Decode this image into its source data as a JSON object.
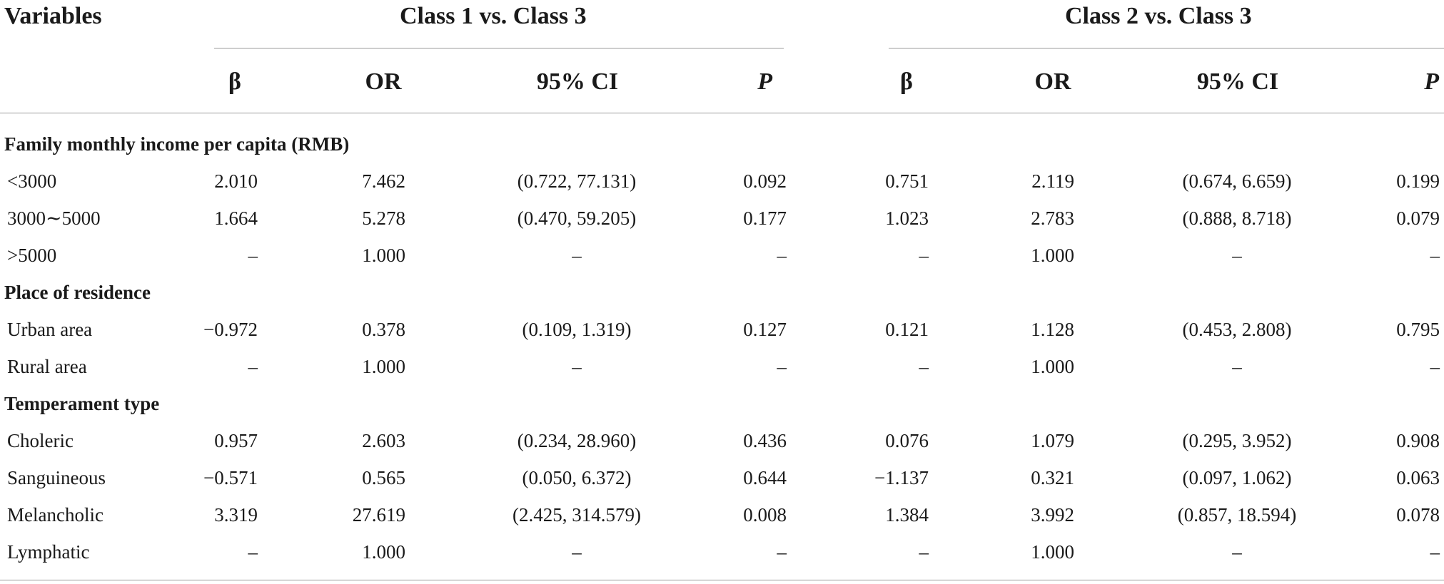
{
  "table": {
    "corner_label": "Variables",
    "groups": [
      {
        "label": "Class 1 vs. Class 3"
      },
      {
        "label": "Class 2 vs. Class 3"
      }
    ],
    "subheaders": [
      "β",
      "OR",
      "95% CI",
      "P",
      "β",
      "OR",
      "95% CI",
      "P"
    ],
    "sections": [
      {
        "title": "Family monthly income per capita (RMB)",
        "rows": [
          {
            "label": "<3000",
            "values": [
              "2.010",
              "7.462",
              "(0.722, 77.131)",
              "0.092",
              "0.751",
              "2.119",
              "(0.674, 6.659)",
              "0.199"
            ]
          },
          {
            "label": "3000∼5000",
            "values": [
              "1.664",
              "5.278",
              "(0.470, 59.205)",
              "0.177",
              "1.023",
              "2.783",
              "(0.888, 8.718)",
              "0.079"
            ]
          },
          {
            "label": ">5000",
            "values": [
              "–",
              "1.000",
              "–",
              "–",
              "–",
              "1.000",
              "–",
              "–"
            ]
          }
        ]
      },
      {
        "title": "Place of residence",
        "rows": [
          {
            "label": "Urban area",
            "values": [
              "−0.972",
              "0.378",
              "(0.109, 1.319)",
              "0.127",
              "0.121",
              "1.128",
              "(0.453, 2.808)",
              "0.795"
            ]
          },
          {
            "label": "Rural area",
            "values": [
              "–",
              "1.000",
              "–",
              "–",
              "–",
              "1.000",
              "–",
              "–"
            ]
          }
        ]
      },
      {
        "title": "Temperament type",
        "rows": [
          {
            "label": "Choleric",
            "values": [
              "0.957",
              "2.603",
              "(0.234, 28.960)",
              "0.436",
              "0.076",
              "1.079",
              "(0.295, 3.952)",
              "0.908"
            ]
          },
          {
            "label": "Sanguineous",
            "values": [
              "−0.571",
              "0.565",
              "(0.050, 6.372)",
              "0.644",
              "−1.137",
              "0.321",
              "(0.097, 1.062)",
              "0.063"
            ]
          },
          {
            "label": "Melancholic",
            "values": [
              "3.319",
              "27.619",
              "(2.425, 314.579)",
              "0.008",
              "1.384",
              "3.992",
              "(0.857, 18.594)",
              "0.078"
            ]
          },
          {
            "label": "Lymphatic",
            "values": [
              "–",
              "1.000",
              "–",
              "–",
              "–",
              "1.000",
              "–",
              "–"
            ]
          }
        ]
      }
    ]
  }
}
